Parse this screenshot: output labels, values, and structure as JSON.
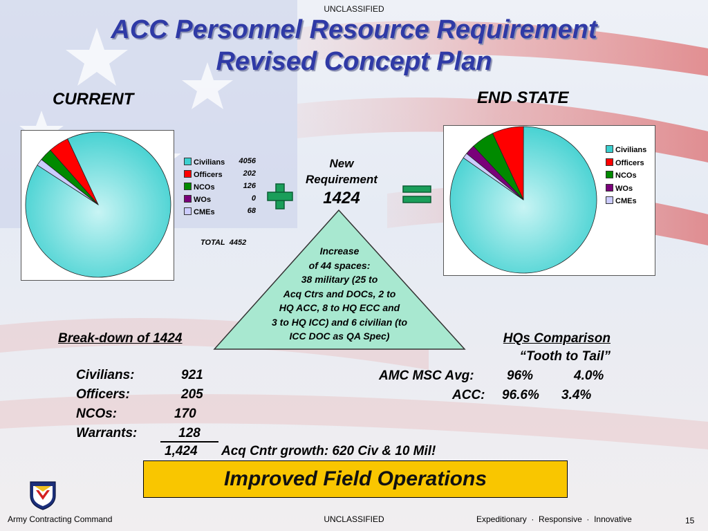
{
  "header": {
    "classification": "UNCLASSIFIED",
    "title_line1": "ACC Personnel Resource Requirement",
    "title_line2": "Revised Concept Plan"
  },
  "current": {
    "heading": "CURRENT",
    "legend_values": [
      "4056",
      "202",
      "126",
      "0",
      "68"
    ],
    "total_label": "TOTAL",
    "total_value": "4452"
  },
  "end_state": {
    "heading": "END STATE"
  },
  "new_requirement": {
    "line1": "New",
    "line2": "Requirement",
    "value": "1424"
  },
  "triangle": {
    "lines": [
      "Increase",
      "of 44 spaces:",
      "38 military (25 to",
      "Acq Ctrs and DOCs, 2 to",
      "HQ ACC, 8 to HQ ECC and",
      "3 to HQ ICC) and 6 civilian (to",
      "ICC DOC as QA Spec)"
    ]
  },
  "breakdown": {
    "heading": "Break-down of 1424",
    "rows": [
      {
        "label": "Civilians:",
        "value": "921"
      },
      {
        "label": "Officers:",
        "value": "205"
      },
      {
        "label": "NCOs:",
        "value": "170"
      },
      {
        "label": "Warrants:",
        "value": "128"
      }
    ],
    "total": "1,424",
    "growth_note": "Acq Cntr growth: 620 Civ & 10 Mil!"
  },
  "hq_comparison": {
    "heading": "HQs Comparison",
    "subheading": "“Tooth  to  Tail”",
    "amc_label": "AMC MSC Avg:",
    "amc_tooth": "96%",
    "amc_tail": "4.0%",
    "acc_label": "ACC:",
    "acc_tooth": "96.6%",
    "acc_tail": "3.4%"
  },
  "banner": {
    "text": "Improved Field Operations"
  },
  "footer": {
    "left": "Army Contracting Command",
    "center": "UNCLASSIFIED",
    "tagline": "Expeditionary  ·  Responsive  ·  Innovative",
    "page": "15"
  },
  "colors": {
    "civilians": "#3ccfcf",
    "officers": "#ff0000",
    "ncos": "#008a00",
    "wos": "#7a007a",
    "cmes": "#ccccff",
    "title": "#2f3aa6",
    "banner": "#f9c600",
    "symbol": "#1a9e5a",
    "triangle": "#a8e8d0"
  },
  "chart_data": [
    {
      "type": "pie",
      "title": "CURRENT",
      "categories": [
        "Civilians",
        "Officers",
        "NCOs",
        "WOs",
        "CMEs"
      ],
      "values": [
        4056,
        202,
        126,
        0,
        68
      ],
      "legend": "right"
    },
    {
      "type": "pie",
      "title": "END STATE",
      "categories": [
        "Civilians",
        "Officers",
        "NCOs",
        "WOs",
        "CMEs"
      ],
      "values": [
        4977,
        407,
        296,
        128,
        68
      ],
      "legend": "right"
    }
  ]
}
